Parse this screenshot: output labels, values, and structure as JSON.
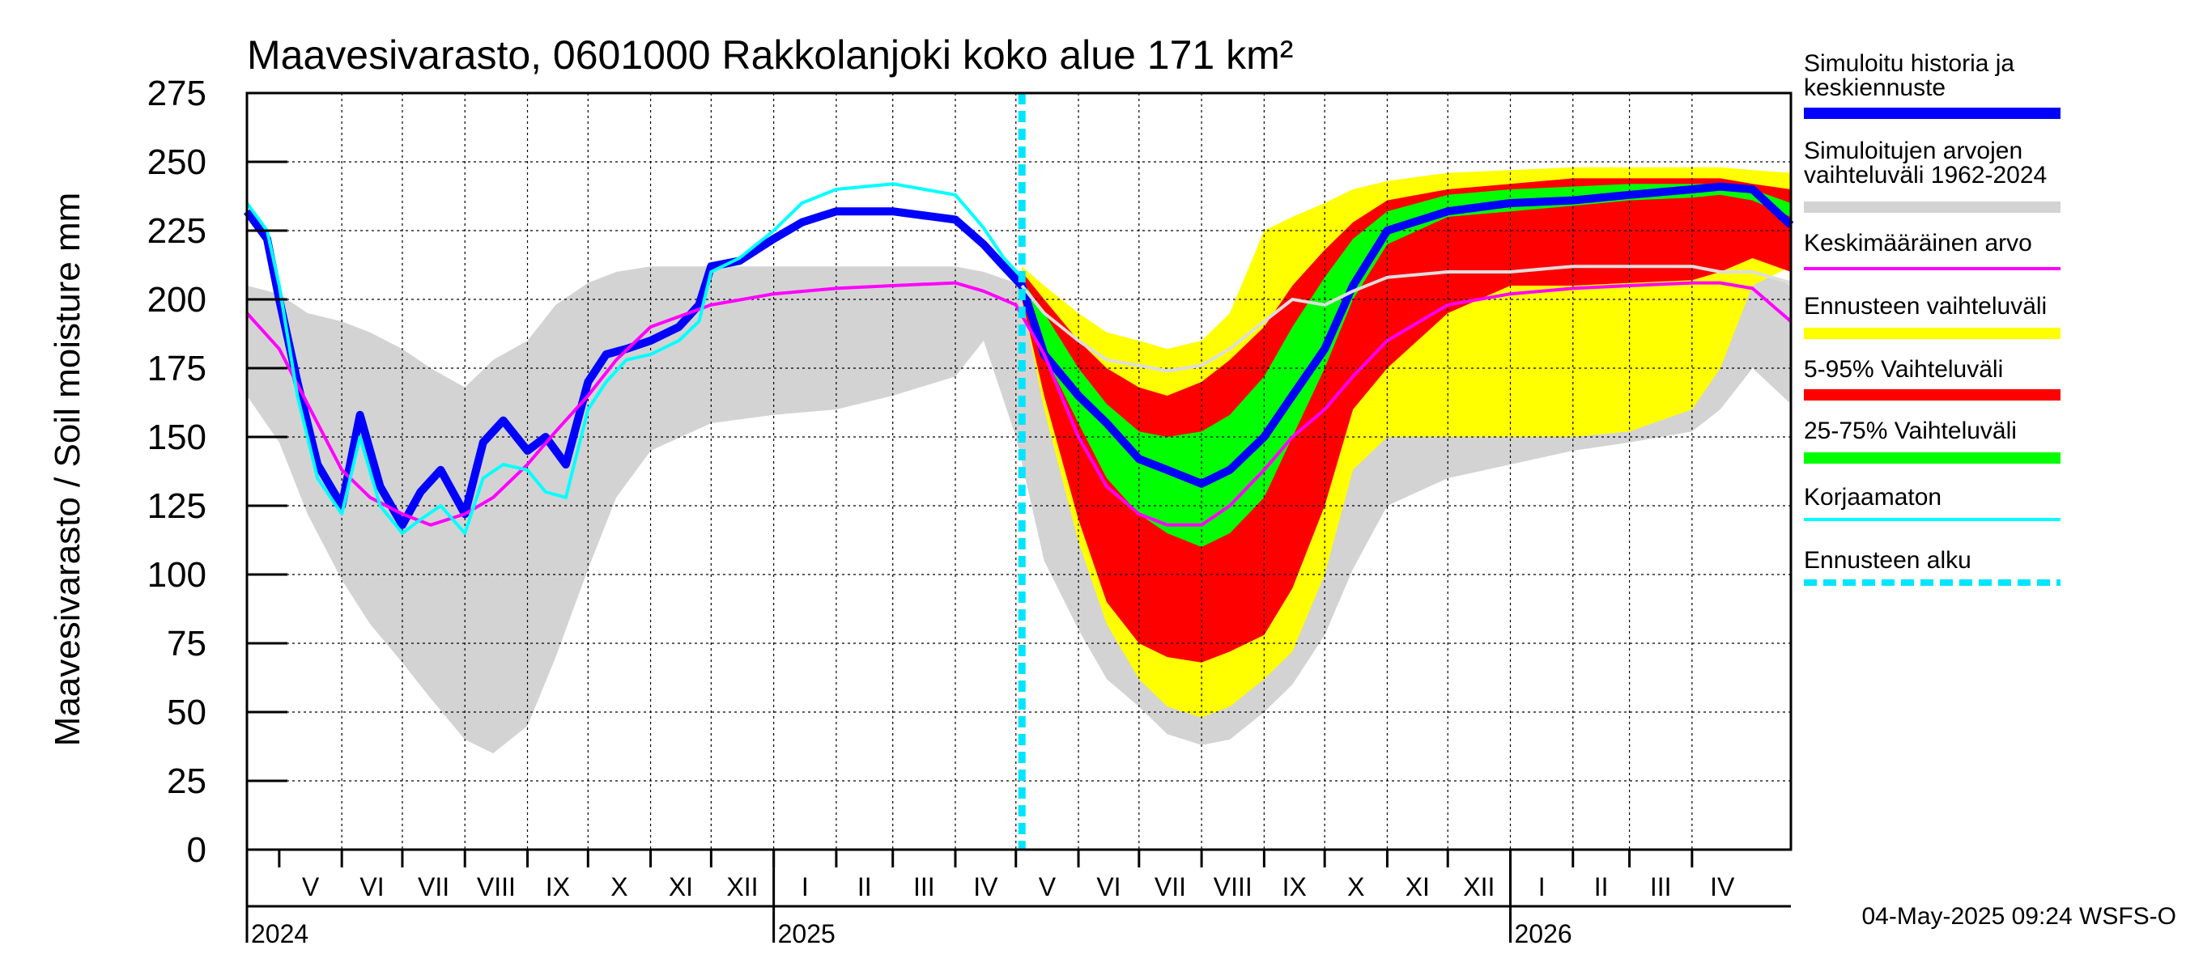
{
  "chart_data": {
    "type": "area",
    "title": "Maavesivarasto, 0601000 Rakkolanjoki koko alue 171 km²",
    "ylabel": "Maavesivarasto / Soil moisture   mm",
    "xlabel": "",
    "ylim": [
      0,
      275
    ],
    "yticks": [
      0,
      25,
      50,
      75,
      100,
      125,
      150,
      175,
      200,
      225,
      250,
      275
    ],
    "xlim": [
      "2024-04-15",
      "2026-05-20"
    ],
    "grid": true,
    "legend_position": "right",
    "forecast_start": "2025-05-04",
    "months": [
      {
        "label": "V",
        "start": "2024-05-01",
        "end": "2024-06-01"
      },
      {
        "label": "VI",
        "start": "2024-06-01",
        "end": "2024-07-01"
      },
      {
        "label": "VII",
        "start": "2024-07-01",
        "end": "2024-08-01"
      },
      {
        "label": "VIII",
        "start": "2024-08-01",
        "end": "2024-09-01"
      },
      {
        "label": "IX",
        "start": "2024-09-01",
        "end": "2024-10-01"
      },
      {
        "label": "X",
        "start": "2024-10-01",
        "end": "2024-11-01"
      },
      {
        "label": "XI",
        "start": "2024-11-01",
        "end": "2024-12-01"
      },
      {
        "label": "XII",
        "start": "2024-12-01",
        "end": "2025-01-01"
      },
      {
        "label": "I",
        "start": "2025-01-01",
        "end": "2025-02-01"
      },
      {
        "label": "II",
        "start": "2025-02-01",
        "end": "2025-03-01"
      },
      {
        "label": "III",
        "start": "2025-03-01",
        "end": "2025-04-01"
      },
      {
        "label": "IV",
        "start": "2025-04-01",
        "end": "2025-05-01"
      },
      {
        "label": "V",
        "start": "2025-05-01",
        "end": "2025-06-01"
      },
      {
        "label": "VI",
        "start": "2025-06-01",
        "end": "2025-07-01"
      },
      {
        "label": "VII",
        "start": "2025-07-01",
        "end": "2025-08-01"
      },
      {
        "label": "VIII",
        "start": "2025-08-01",
        "end": "2025-09-01"
      },
      {
        "label": "IX",
        "start": "2025-09-01",
        "end": "2025-10-01"
      },
      {
        "label": "X",
        "start": "2025-10-01",
        "end": "2025-11-01"
      },
      {
        "label": "XI",
        "start": "2025-11-01",
        "end": "2025-12-01"
      },
      {
        "label": "XII",
        "start": "2025-12-01",
        "end": "2026-01-01"
      },
      {
        "label": "I",
        "start": "2026-01-01",
        "end": "2026-02-01"
      },
      {
        "label": "II",
        "start": "2026-02-01",
        "end": "2026-03-01"
      },
      {
        "label": "III",
        "start": "2026-03-01",
        "end": "2026-04-01"
      },
      {
        "label": "IV",
        "start": "2026-04-01",
        "end": "2026-05-01"
      }
    ],
    "years": [
      {
        "label": "2024",
        "date": "2024-04-15"
      },
      {
        "label": "2025",
        "date": "2025-01-01"
      },
      {
        "label": "2026",
        "date": "2026-01-01"
      }
    ],
    "legend": [
      {
        "label": "Simuloitu historia ja keskiennuste",
        "color": "#0000ff",
        "style": "thick"
      },
      {
        "label": "Simuloitujen arvojen vaihteluväli 1962-2024",
        "color": "#d3d3d3",
        "style": "thick"
      },
      {
        "label": "Keskimääräinen arvo",
        "color": "#ff00ff",
        "style": "thin"
      },
      {
        "label": "Ennusteen vaihteluväli",
        "color": "#ffff00",
        "style": "thick"
      },
      {
        "label": "5-95% Vaihteluväli",
        "color": "#ff0000",
        "style": "thick"
      },
      {
        "label": "25-75% Vaihteluväli",
        "color": "#00ff00",
        "style": "thick"
      },
      {
        "label": "Korjaamaton",
        "color": "#00ffff",
        "style": "thin"
      },
      {
        "label": "Ennusteen alku",
        "color": "#00e5ff",
        "style": "dashed"
      }
    ],
    "bands": [
      {
        "name": "Simuloitujen arvojen vaihteluväli 1962-2024",
        "color": "#d3d3d3",
        "x": [
          "2024-04-15",
          "2024-05-01",
          "2024-05-15",
          "2024-06-01",
          "2024-06-15",
          "2024-07-01",
          "2024-07-15",
          "2024-08-01",
          "2024-08-15",
          "2024-09-01",
          "2024-09-15",
          "2024-10-01",
          "2024-10-15",
          "2024-11-01",
          "2024-12-01",
          "2025-01-01",
          "2025-02-01",
          "2025-03-01",
          "2025-04-01",
          "2025-04-15",
          "2025-05-01",
          "2025-05-15",
          "2025-06-01",
          "2025-06-15",
          "2025-07-01",
          "2025-07-15",
          "2025-08-01",
          "2025-08-15",
          "2025-09-01",
          "2025-09-15",
          "2025-10-01",
          "2025-10-15",
          "2025-11-01",
          "2025-12-01",
          "2026-01-01",
          "2026-02-01",
          "2026-03-01",
          "2026-04-01",
          "2026-04-15",
          "2026-05-01",
          "2026-05-20"
        ],
        "lower": [
          165,
          148,
          122,
          98,
          82,
          68,
          55,
          40,
          35,
          45,
          70,
          102,
          128,
          145,
          155,
          158,
          160,
          165,
          172,
          185,
          150,
          105,
          80,
          62,
          52,
          42,
          38,
          40,
          50,
          60,
          78,
          102,
          125,
          135,
          140,
          145,
          148,
          152,
          160,
          175,
          162
        ],
        "upper": [
          205,
          202,
          195,
          192,
          188,
          182,
          175,
          168,
          178,
          185,
          198,
          206,
          210,
          212,
          212,
          212,
          212,
          212,
          212,
          210,
          206,
          198,
          180,
          172,
          170,
          168,
          170,
          180,
          192,
          200,
          205,
          208,
          210,
          210,
          210,
          212,
          210,
          212,
          212,
          212,
          205
        ]
      },
      {
        "name": "Ennusteen vaihteluväli",
        "color": "#ffff00",
        "x": [
          "2025-05-04",
          "2025-05-15",
          "2025-06-01",
          "2025-06-15",
          "2025-07-01",
          "2025-07-15",
          "2025-08-01",
          "2025-08-15",
          "2025-09-01",
          "2025-09-15",
          "2025-10-01",
          "2025-10-15",
          "2025-11-01",
          "2025-12-01",
          "2026-01-01",
          "2026-02-01",
          "2026-03-01",
          "2026-04-01",
          "2026-04-15",
          "2026-05-01",
          "2026-05-20"
        ],
        "lower": [
          200,
          160,
          112,
          82,
          62,
          52,
          48,
          52,
          62,
          72,
          100,
          138,
          150,
          150,
          150,
          150,
          152,
          160,
          175,
          205,
          212
        ],
        "upper": [
          212,
          205,
          195,
          188,
          185,
          182,
          185,
          195,
          225,
          230,
          235,
          240,
          243,
          246,
          247,
          248,
          248,
          248,
          248,
          247,
          246
        ]
      },
      {
        "name": "5-95% Vaihteluväli",
        "color": "#ff0000",
        "x": [
          "2025-05-04",
          "2025-05-15",
          "2025-06-01",
          "2025-06-15",
          "2025-07-01",
          "2025-07-15",
          "2025-08-01",
          "2025-08-15",
          "2025-09-01",
          "2025-09-15",
          "2025-10-01",
          "2025-10-15",
          "2025-11-01",
          "2025-12-01",
          "2026-01-01",
          "2026-02-01",
          "2026-03-01",
          "2026-04-01",
          "2026-04-15",
          "2026-05-01",
          "2026-05-20"
        ],
        "lower": [
          200,
          165,
          120,
          90,
          75,
          70,
          68,
          72,
          78,
          95,
          125,
          160,
          175,
          195,
          205,
          205,
          206,
          207,
          210,
          215,
          210
        ],
        "upper": [
          210,
          200,
          185,
          175,
          168,
          165,
          170,
          178,
          190,
          205,
          218,
          228,
          236,
          240,
          242,
          244,
          244,
          244,
          244,
          242,
          240
        ]
      },
      {
        "name": "25-75% Vaihteluväli",
        "color": "#00ff00",
        "x": [
          "2025-05-04",
          "2025-05-15",
          "2025-06-01",
          "2025-06-15",
          "2025-07-01",
          "2025-07-15",
          "2025-08-01",
          "2025-08-15",
          "2025-09-01",
          "2025-09-15",
          "2025-10-01",
          "2025-10-15",
          "2025-11-01",
          "2025-12-01",
          "2026-01-01",
          "2026-02-01",
          "2026-03-01",
          "2026-04-01",
          "2026-04-15",
          "2026-05-01",
          "2026-05-20"
        ],
        "lower": [
          202,
          180,
          155,
          135,
          122,
          115,
          110,
          115,
          128,
          150,
          175,
          200,
          220,
          230,
          232,
          234,
          236,
          237,
          238,
          236,
          230
        ],
        "upper": [
          207,
          195,
          175,
          162,
          152,
          150,
          152,
          158,
          172,
          190,
          208,
          222,
          232,
          238,
          240,
          241,
          242,
          242,
          242,
          240,
          235
        ]
      }
    ],
    "series": [
      {
        "name": "Simuloitu historia ja keskiennuste",
        "color": "#0000ff",
        "x": [
          "2024-04-15",
          "2024-04-25",
          "2024-05-01",
          "2024-05-10",
          "2024-05-20",
          "2024-06-01",
          "2024-06-10",
          "2024-06-20",
          "2024-07-01",
          "2024-07-10",
          "2024-07-20",
          "2024-08-01",
          "2024-08-10",
          "2024-08-20",
          "2024-09-01",
          "2024-09-10",
          "2024-09-20",
          "2024-10-01",
          "2024-10-10",
          "2024-10-20",
          "2024-11-01",
          "2024-11-15",
          "2024-11-25",
          "2024-12-01",
          "2024-12-15",
          "2025-01-01",
          "2025-01-15",
          "2025-02-01",
          "2025-03-01",
          "2025-04-01",
          "2025-04-15",
          "2025-04-25",
          "2025-05-04",
          "2025-05-15",
          "2025-06-01",
          "2025-06-15",
          "2025-07-01",
          "2025-07-15",
          "2025-08-01",
          "2025-08-15",
          "2025-09-01",
          "2025-09-15",
          "2025-10-01",
          "2025-10-15",
          "2025-11-01",
          "2025-12-01",
          "2026-01-01",
          "2026-02-01",
          "2026-03-01",
          "2026-04-01",
          "2026-04-15",
          "2026-05-01",
          "2026-05-20"
        ],
        "values": [
          232,
          222,
          200,
          170,
          140,
          125,
          158,
          132,
          118,
          130,
          138,
          122,
          148,
          156,
          145,
          150,
          140,
          170,
          180,
          182,
          185,
          190,
          198,
          212,
          214,
          222,
          228,
          232,
          232,
          229,
          220,
          212,
          205,
          180,
          165,
          155,
          142,
          138,
          133,
          138,
          150,
          165,
          182,
          205,
          225,
          232,
          235,
          236,
          238,
          240,
          241,
          240,
          227
        ]
      },
      {
        "name": "Keskimääräinen arvo",
        "color": "#ff00ff",
        "x": [
          "2024-04-15",
          "2024-05-01",
          "2024-05-15",
          "2024-06-01",
          "2024-06-15",
          "2024-07-01",
          "2024-07-15",
          "2024-08-01",
          "2024-08-15",
          "2024-09-01",
          "2024-09-15",
          "2024-10-01",
          "2024-10-15",
          "2024-11-01",
          "2024-12-01",
          "2025-01-01",
          "2025-02-01",
          "2025-03-01",
          "2025-04-01",
          "2025-04-15",
          "2025-05-01",
          "2025-05-15",
          "2025-06-01",
          "2025-06-15",
          "2025-07-01",
          "2025-07-15",
          "2025-08-01",
          "2025-08-15",
          "2025-09-01",
          "2025-09-15",
          "2025-10-01",
          "2025-10-15",
          "2025-11-01",
          "2025-12-01",
          "2026-01-01",
          "2026-02-01",
          "2026-03-01",
          "2026-04-01",
          "2026-04-15",
          "2026-05-01",
          "2026-05-20"
        ],
        "values": [
          195,
          182,
          162,
          138,
          128,
          122,
          118,
          122,
          128,
          140,
          152,
          165,
          178,
          190,
          198,
          202,
          204,
          205,
          206,
          203,
          198,
          180,
          150,
          132,
          122,
          118,
          118,
          125,
          138,
          150,
          160,
          172,
          185,
          198,
          202,
          204,
          205,
          206,
          206,
          204,
          192
        ]
      },
      {
        "name": "Korjaamaton",
        "color": "#00ffff",
        "x": [
          "2024-04-15",
          "2024-04-25",
          "2024-05-01",
          "2024-05-10",
          "2024-05-20",
          "2024-06-01",
          "2024-06-10",
          "2024-06-20",
          "2024-07-01",
          "2024-07-10",
          "2024-07-20",
          "2024-08-01",
          "2024-08-10",
          "2024-08-20",
          "2024-09-01",
          "2024-09-10",
          "2024-09-20",
          "2024-10-01",
          "2024-10-10",
          "2024-10-20",
          "2024-11-01",
          "2024-11-15",
          "2024-11-25",
          "2024-12-01",
          "2024-12-15",
          "2025-01-01",
          "2025-01-15",
          "2025-02-01",
          "2025-03-01",
          "2025-04-01",
          "2025-04-15",
          "2025-04-25",
          "2025-05-04"
        ],
        "values": [
          235,
          225,
          205,
          165,
          135,
          122,
          150,
          125,
          115,
          120,
          125,
          115,
          135,
          140,
          138,
          130,
          128,
          160,
          170,
          178,
          180,
          185,
          192,
          210,
          215,
          225,
          235,
          240,
          242,
          238,
          226,
          215,
          208
        ]
      },
      {
        "name": "Median of simulated values",
        "color": "#dddddd",
        "x": [
          "2025-05-04",
          "2025-05-15",
          "2025-06-01",
          "2025-06-15",
          "2025-07-01",
          "2025-07-15",
          "2025-08-01",
          "2025-08-15",
          "2025-09-01",
          "2025-09-15",
          "2025-10-01",
          "2025-10-15",
          "2025-11-01",
          "2025-12-01",
          "2026-01-01",
          "2026-02-01",
          "2026-03-01",
          "2026-04-01",
          "2026-04-15",
          "2026-05-01",
          "2026-05-20"
        ],
        "values": [
          205,
          195,
          185,
          178,
          176,
          174,
          176,
          182,
          192,
          200,
          198,
          203,
          208,
          210,
          210,
          212,
          212,
          212,
          210,
          210,
          206
        ]
      }
    ]
  },
  "footer": {
    "timestamp": "04-May-2025 09:24 WSFS-O"
  }
}
